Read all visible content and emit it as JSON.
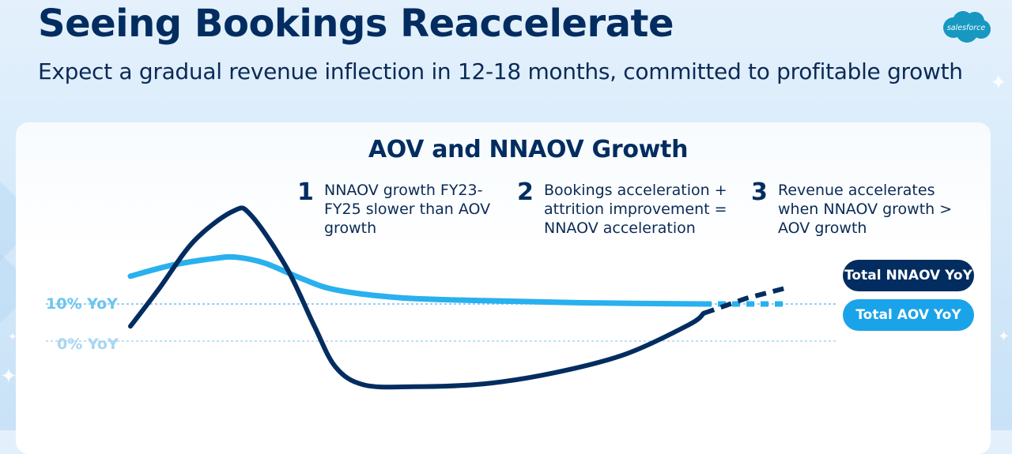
{
  "header": {
    "title": "Seeing Bookings Reaccelerate",
    "subtitle": "Expect a gradual revenue inflection in 12-18 months, committed to profitable growth",
    "logo_text": "salesforce"
  },
  "colors": {
    "nnaov": "#032d60",
    "aov": "#29b0ee",
    "ref_10": "#6cc4f0",
    "ref_0": "#a8d6f2"
  },
  "chart_data": {
    "type": "line",
    "title": "AOV and NNAOV Growth",
    "y_reference_lines": [
      {
        "label": "10% YoY",
        "value": 10
      },
      {
        "label": "0% YoY",
        "value": 0
      }
    ],
    "ylim": [
      -14,
      38
    ],
    "xlim": [
      0,
      100
    ],
    "series": [
      {
        "name": "Total NNAOV YoY",
        "color": "#032d60",
        "points": [
          [
            0,
            4
          ],
          [
            4,
            14
          ],
          [
            9,
            27
          ],
          [
            14.5,
            35
          ],
          [
            17,
            34
          ],
          [
            22,
            20
          ],
          [
            26,
            4
          ],
          [
            29,
            -7
          ],
          [
            33,
            -11.8
          ],
          [
            40,
            -12.3
          ],
          [
            50,
            -11.5
          ],
          [
            60,
            -8.5
          ],
          [
            70,
            -3.5
          ],
          [
            79,
            4.5
          ],
          [
            81,
            7.5
          ]
        ],
        "projection": [
          [
            81,
            7.5
          ],
          [
            87,
            11.5
          ],
          [
            93,
            14.5
          ]
        ]
      },
      {
        "name": "Total AOV YoY",
        "color": "#29b0ee",
        "points": [
          [
            0,
            17.5
          ],
          [
            6,
            20.5
          ],
          [
            12,
            22.3
          ],
          [
            15,
            22.6
          ],
          [
            19,
            21
          ],
          [
            24,
            17
          ],
          [
            29,
            13.8
          ],
          [
            38,
            11.7
          ],
          [
            50,
            10.9
          ],
          [
            65,
            10.3
          ],
          [
            81,
            10
          ]
        ],
        "projection": [
          [
            81,
            10
          ],
          [
            93,
            10
          ]
        ]
      }
    ],
    "annotations": [
      {
        "number": "1",
        "text": "NNAOV growth FY23-\nFY25 slower than AOV\ngrowth"
      },
      {
        "number": "2",
        "text": "Bookings acceleration +\nattrition improvement =\nNNAOV acceleration"
      },
      {
        "number": "3",
        "text": "Revenue accelerates\nwhen NNAOV growth >\nAOV growth"
      }
    ],
    "legend": [
      {
        "name": "Total NNAOV YoY"
      },
      {
        "name": "Total AOV YoY"
      }
    ]
  }
}
